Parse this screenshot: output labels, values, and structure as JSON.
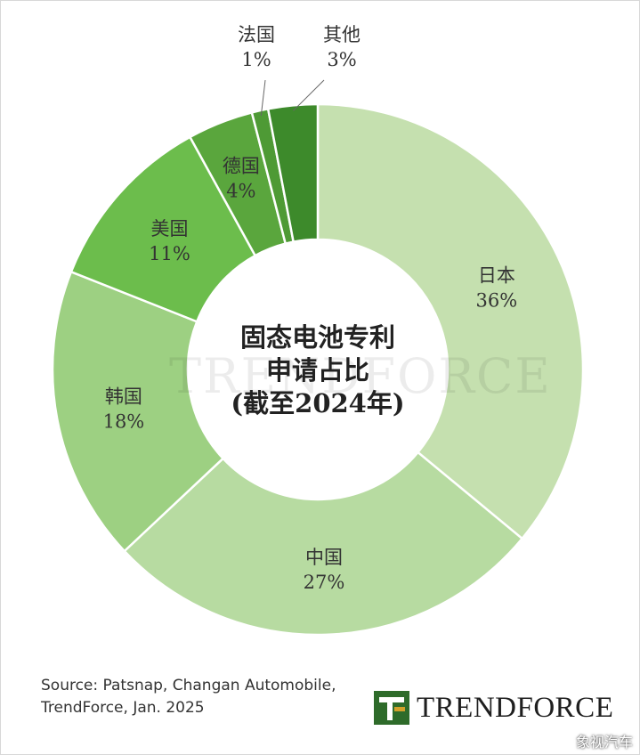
{
  "chart_data": {
    "type": "pie",
    "title_lines": [
      "固态电池专利",
      "申请占比",
      "(截至2024年)"
    ],
    "slices": [
      {
        "label": "日本",
        "value_label": "36%",
        "value": 36,
        "color": "#c5e0af"
      },
      {
        "label": "中国",
        "value_label": "27%",
        "value": 27,
        "color": "#b7dba1"
      },
      {
        "label": "韩国",
        "value_label": "18%",
        "value": 18,
        "color": "#9dd082"
      },
      {
        "label": "美国",
        "value_label": "11%",
        "value": 11,
        "color": "#6cbd4c"
      },
      {
        "label": "德国",
        "value_label": "4%",
        "value": 4,
        "color": "#5aa63d"
      },
      {
        "label": "法国",
        "value_label": "1%",
        "value": 1,
        "color": "#4e9a35"
      },
      {
        "label": "其他",
        "value_label": "3%",
        "value": 3,
        "color": "#3d8a2b"
      }
    ]
  },
  "watermark": "TRENDFORCE",
  "source": {
    "line1": "Source: Patsnap, Changan Automobile,",
    "line2": "TrendForce, Jan. 2025"
  },
  "logo": {
    "text": "TRENDFORCE",
    "mark_color": "#2e6b2a",
    "mark_accent": "#d2a12a"
  },
  "corner_watermark": "象视汽车"
}
